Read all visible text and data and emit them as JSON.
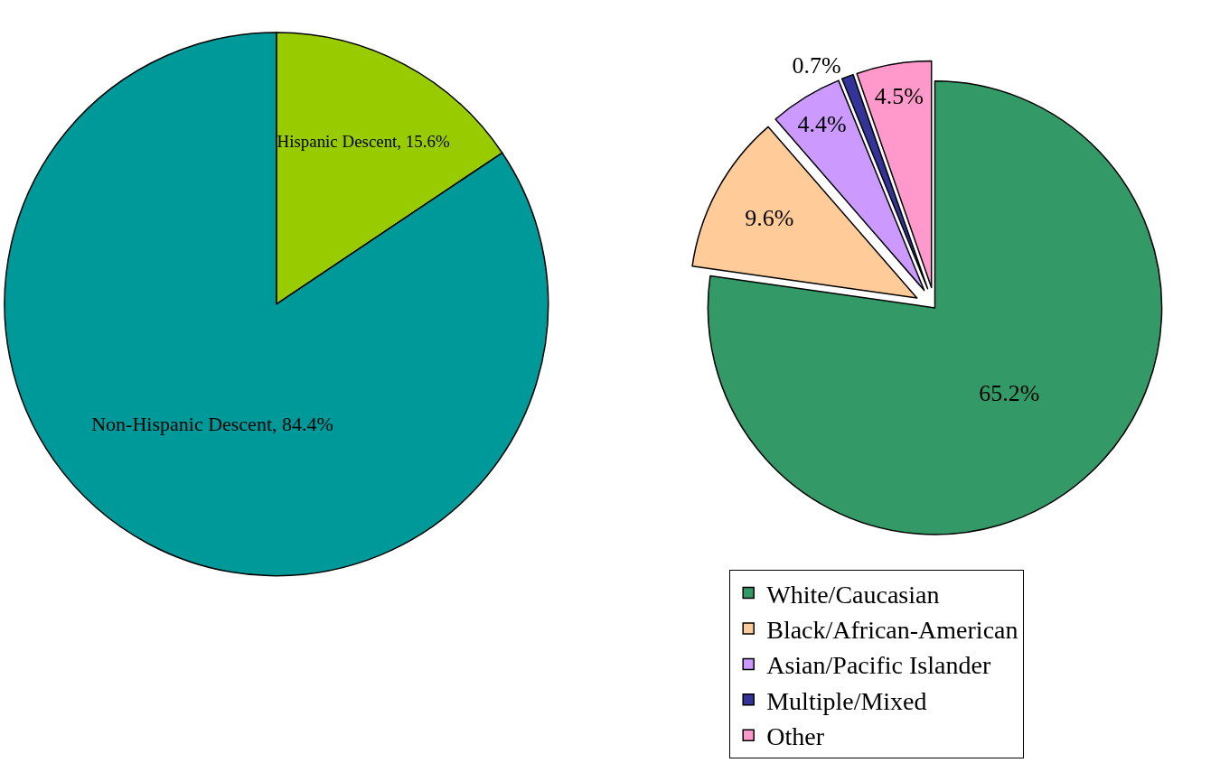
{
  "chart_data": [
    {
      "type": "pie",
      "categories": [
        "Hispanic Descent",
        "Non-Hispanic Descent"
      ],
      "values": [
        15.6,
        84.4
      ],
      "colors": [
        "#99cc00",
        "#009999"
      ],
      "value_labels": [
        "15.6%",
        "84.4%"
      ],
      "legend": false
    },
    {
      "type": "pie",
      "categories": [
        "White/Caucasian",
        "Black/African-American",
        "Asian/Pacific Islander",
        "Multiple/Mixed",
        "Other"
      ],
      "values": [
        65.2,
        9.6,
        4.4,
        0.7,
        4.5
      ],
      "colors": [
        "#339966",
        "#ffcc99",
        "#cc99ff",
        "#333399",
        "#ff99cc"
      ],
      "value_labels": [
        "65.2%",
        "9.6%",
        "4.4%",
        "0.7%",
        "4.5%"
      ],
      "legend": "bottom"
    }
  ]
}
